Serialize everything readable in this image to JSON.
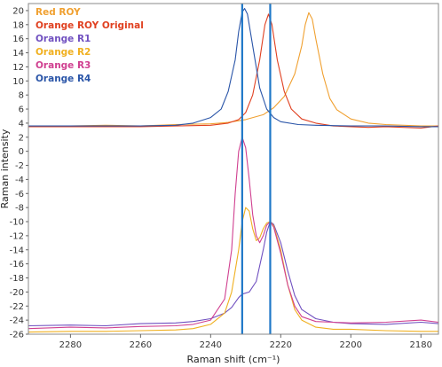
{
  "chart_data": {
    "type": "line",
    "xlabel": "Raman shift (cm⁻¹)",
    "ylabel": "Raman intensity",
    "xlim": [
      2292,
      2175
    ],
    "ylim": [
      -26,
      21
    ],
    "x_ticks": [
      2280,
      2260,
      2240,
      2220,
      2200,
      2180
    ],
    "y_ticks": [
      -26,
      -24,
      -22,
      -20,
      -18,
      -16,
      -14,
      -12,
      -10,
      -8,
      -6,
      -4,
      -2,
      0,
      2,
      4,
      6,
      8,
      10,
      12,
      14,
      16,
      18,
      20
    ],
    "x_reversed": true,
    "legend_position": "top-left",
    "vertical_markers": [
      {
        "x": 2231,
        "color": "#1f78c8"
      },
      {
        "x": 2223,
        "color": "#1f78c8"
      }
    ],
    "series": [
      {
        "name": "Red ROY",
        "color": "#f0a030",
        "points": [
          [
            2292,
            3.6
          ],
          [
            2280,
            3.6
          ],
          [
            2270,
            3.7
          ],
          [
            2260,
            3.6
          ],
          [
            2250,
            3.8
          ],
          [
            2240,
            3.9
          ],
          [
            2235,
            4.1
          ],
          [
            2230,
            4.5
          ],
          [
            2225,
            5.2
          ],
          [
            2222,
            6.2
          ],
          [
            2219,
            7.8
          ],
          [
            2216,
            11.0
          ],
          [
            2214,
            15.0
          ],
          [
            2213,
            18.0
          ],
          [
            2212,
            19.7
          ],
          [
            2211,
            18.8
          ],
          [
            2210,
            16.0
          ],
          [
            2208,
            11.0
          ],
          [
            2206,
            7.5
          ],
          [
            2204,
            5.9
          ],
          [
            2200,
            4.6
          ],
          [
            2195,
            4.0
          ],
          [
            2190,
            3.8
          ],
          [
            2180,
            3.6
          ],
          [
            2175,
            3.6
          ]
        ]
      },
      {
        "name": "Orange ROY Original",
        "color": "#e04020",
        "points": [
          [
            2292,
            3.5
          ],
          [
            2280,
            3.5
          ],
          [
            2270,
            3.5
          ],
          [
            2260,
            3.5
          ],
          [
            2250,
            3.6
          ],
          [
            2240,
            3.7
          ],
          [
            2235,
            4.0
          ],
          [
            2232,
            4.5
          ],
          [
            2230,
            5.5
          ],
          [
            2228,
            8.0
          ],
          [
            2226,
            13.0
          ],
          [
            2224.5,
            18.0
          ],
          [
            2223.5,
            19.5
          ],
          [
            2222.5,
            18.0
          ],
          [
            2221,
            13.0
          ],
          [
            2219,
            8.5
          ],
          [
            2217,
            6.0
          ],
          [
            2214,
            4.6
          ],
          [
            2210,
            4.0
          ],
          [
            2205,
            3.6
          ],
          [
            2200,
            3.5
          ],
          [
            2195,
            3.4
          ],
          [
            2190,
            3.5
          ],
          [
            2180,
            3.3
          ],
          [
            2175,
            3.6
          ]
        ]
      },
      {
        "name": "Orange R1",
        "color": "#7050c0",
        "points": [
          [
            2292,
            -24.8
          ],
          [
            2280,
            -24.7
          ],
          [
            2270,
            -24.8
          ],
          [
            2260,
            -24.5
          ],
          [
            2250,
            -24.4
          ],
          [
            2245,
            -24.2
          ],
          [
            2240,
            -23.8
          ],
          [
            2236,
            -23.0
          ],
          [
            2234,
            -22.2
          ],
          [
            2232,
            -20.8
          ],
          [
            2231,
            -20.3
          ],
          [
            2229,
            -20.0
          ],
          [
            2227,
            -18.5
          ],
          [
            2225,
            -14.0
          ],
          [
            2224,
            -11.5
          ],
          [
            2223,
            -10.0
          ],
          [
            2222,
            -10.4
          ],
          [
            2220,
            -13.0
          ],
          [
            2218,
            -17.0
          ],
          [
            2216,
            -20.5
          ],
          [
            2214,
            -22.5
          ],
          [
            2210,
            -23.8
          ],
          [
            2205,
            -24.3
          ],
          [
            2200,
            -24.5
          ],
          [
            2190,
            -24.6
          ],
          [
            2180,
            -24.3
          ],
          [
            2175,
            -24.5
          ]
        ]
      },
      {
        "name": "Orange R2",
        "color": "#f0b020",
        "points": [
          [
            2292,
            -25.7
          ],
          [
            2280,
            -25.6
          ],
          [
            2270,
            -25.6
          ],
          [
            2260,
            -25.5
          ],
          [
            2250,
            -25.4
          ],
          [
            2245,
            -25.2
          ],
          [
            2240,
            -24.6
          ],
          [
            2236,
            -23.0
          ],
          [
            2234,
            -20.0
          ],
          [
            2232,
            -14.0
          ],
          [
            2231,
            -10.0
          ],
          [
            2230,
            -8.0
          ],
          [
            2229,
            -8.5
          ],
          [
            2228,
            -11.0
          ],
          [
            2227,
            -12.7
          ],
          [
            2226,
            -12.3
          ],
          [
            2225,
            -11.0
          ],
          [
            2224,
            -10.2
          ],
          [
            2223,
            -10.0
          ],
          [
            2222,
            -10.6
          ],
          [
            2220,
            -14.0
          ],
          [
            2218,
            -19.0
          ],
          [
            2216,
            -22.5
          ],
          [
            2214,
            -24.0
          ],
          [
            2210,
            -25.0
          ],
          [
            2205,
            -25.3
          ],
          [
            2200,
            -25.3
          ],
          [
            2190,
            -25.5
          ],
          [
            2180,
            -25.6
          ],
          [
            2175,
            -25.6
          ]
        ]
      },
      {
        "name": "Orange R3",
        "color": "#d04090",
        "points": [
          [
            2292,
            -25.2
          ],
          [
            2280,
            -25.0
          ],
          [
            2270,
            -25.1
          ],
          [
            2260,
            -24.9
          ],
          [
            2250,
            -24.8
          ],
          [
            2245,
            -24.6
          ],
          [
            2240,
            -24.0
          ],
          [
            2236,
            -21.0
          ],
          [
            2234,
            -14.0
          ],
          [
            2233,
            -6.0
          ],
          [
            2232,
            0.0
          ],
          [
            2231,
            2.0
          ],
          [
            2230,
            0.5
          ],
          [
            2229,
            -4.0
          ],
          [
            2228,
            -9.0
          ],
          [
            2227,
            -12.0
          ],
          [
            2226,
            -13.0
          ],
          [
            2225,
            -12.0
          ],
          [
            2224,
            -10.5
          ],
          [
            2223,
            -10.0
          ],
          [
            2222,
            -10.8
          ],
          [
            2220,
            -14.5
          ],
          [
            2218,
            -19.0
          ],
          [
            2216,
            -22.0
          ],
          [
            2214,
            -23.5
          ],
          [
            2210,
            -24.2
          ],
          [
            2205,
            -24.3
          ],
          [
            2200,
            -24.4
          ],
          [
            2190,
            -24.3
          ],
          [
            2180,
            -24.0
          ],
          [
            2175,
            -24.3
          ]
        ]
      },
      {
        "name": "Orange R4",
        "color": "#2a55a8",
        "points": [
          [
            2292,
            3.6
          ],
          [
            2280,
            3.6
          ],
          [
            2270,
            3.6
          ],
          [
            2260,
            3.6
          ],
          [
            2250,
            3.7
          ],
          [
            2245,
            4.0
          ],
          [
            2240,
            4.8
          ],
          [
            2237,
            6.0
          ],
          [
            2235,
            8.5
          ],
          [
            2233,
            13.0
          ],
          [
            2232,
            17.0
          ],
          [
            2231,
            19.8
          ],
          [
            2230.3,
            20.3
          ],
          [
            2229.5,
            19.5
          ],
          [
            2228,
            15.0
          ],
          [
            2226,
            9.0
          ],
          [
            2224,
            6.0
          ],
          [
            2222,
            4.8
          ],
          [
            2220,
            4.2
          ],
          [
            2215,
            3.8
          ],
          [
            2210,
            3.7
          ],
          [
            2200,
            3.6
          ],
          [
            2190,
            3.6
          ],
          [
            2180,
            3.5
          ],
          [
            2175,
            3.5
          ]
        ]
      }
    ]
  }
}
